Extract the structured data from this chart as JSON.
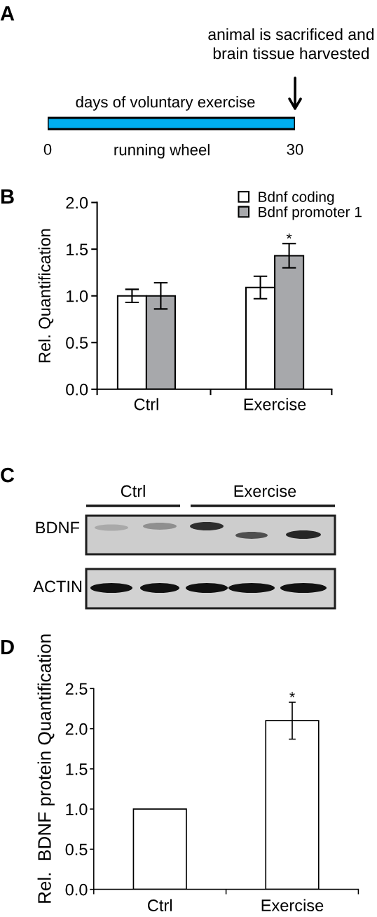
{
  "chart_data": [
    {
      "type": "bar",
      "orientation": "horizontal",
      "categories": [
        null
      ],
      "values": [
        30
      ],
      "color": "#00aeef",
      "xlim": [
        0,
        30
      ],
      "xticks": [
        0,
        30
      ],
      "tick_labels": "x",
      "title": "days of voluntary exercise",
      "xlabel": "running wheel",
      "annotations": [
        "A",
        "animal is sacrificed and\nbrain tissue harvested"
      ]
    },
    {
      "type": "bar",
      "categories": [
        "Ctrl",
        "Exercise"
      ],
      "series": [
        {
          "name": "Bdnf coding",
          "color": "#ffffff",
          "values": [
            1.0,
            1.09
          ],
          "errors": [
            0.07,
            0.12
          ]
        },
        {
          "name": "Bdnf promoter 1",
          "color": "#a7a8ab",
          "values": [
            1.0,
            1.43
          ],
          "errors": [
            0.14,
            0.13
          ]
        }
      ],
      "ylabel": "Rel. Quantification",
      "ylim": [
        0,
        2.0
      ],
      "yticks": [
        {
          "value": 0,
          "label": "0.0"
        },
        0.5,
        {
          "value": 1,
          "label": "1.0"
        },
        1.5,
        {
          "value": 2,
          "label": "2.0"
        }
      ],
      "legend": "top right",
      "annotations": [
        "B",
        "*"
      ]
    },
    {
      "type": "other",
      "annotations": [
        "C",
        "Ctrl",
        "Exercise",
        "BDNF",
        "ACTIN"
      ]
    },
    {
      "type": "bar",
      "categories": [
        "Ctrl",
        "Exercise"
      ],
      "values": [
        1.0,
        2.1
      ],
      "errors": [
        null,
        0.23
      ],
      "color": "#ffffff",
      "ylabel": "Rel.  BDNF protein Quantification",
      "ylim": [
        0,
        2.5
      ],
      "yticks": [
        {
          "value": 0,
          "label": "0.0"
        },
        0.5,
        {
          "value": 1,
          "label": "1.0"
        },
        1.5,
        {
          "value": 2,
          "label": "2.0"
        },
        2.5
      ],
      "annotations": [
        "D",
        {
          "text": "*",
          "x": "Exercise",
          "y": 2.33
        }
      ]
    }
  ]
}
